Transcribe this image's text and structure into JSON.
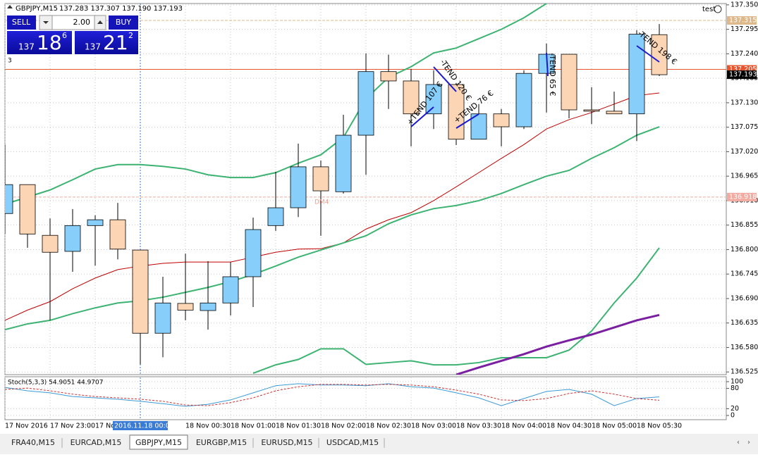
{
  "header": {
    "symbol": "GBPJPY,M15",
    "ohlc": "137.283 137.307 137.190 137.193"
  },
  "account": "test",
  "trade_panel": {
    "sell": "SELL",
    "buy": "BUY",
    "volume": "2.00",
    "sell_price": {
      "big": "137",
      "main": "18",
      "small": "6"
    },
    "buy_price": {
      "big": "137",
      "main": "21",
      "small": "2"
    },
    "indicator_count": "3"
  },
  "chart": {
    "ylim": [
      136.519,
      137.353
    ],
    "yticks": [
      {
        "value": 137.35,
        "label": "137.350"
      },
      {
        "value": 137.295,
        "label": "137.295"
      },
      {
        "value": 137.24,
        "label": "137.240"
      },
      {
        "value": 137.185,
        "label": "137.185"
      },
      {
        "value": 137.13,
        "label": "137.130"
      },
      {
        "value": 137.075,
        "label": "137.075"
      },
      {
        "value": 137.02,
        "label": "137.020"
      },
      {
        "value": 136.965,
        "label": "136.965"
      },
      {
        "value": 136.91,
        "label": "136.910"
      },
      {
        "value": 136.855,
        "label": "136.855"
      },
      {
        "value": 136.8,
        "label": "136.800"
      },
      {
        "value": 136.745,
        "label": "136.745"
      },
      {
        "value": 136.69,
        "label": "136.690"
      },
      {
        "value": 136.635,
        "label": "136.635"
      },
      {
        "value": 136.58,
        "label": "136.580"
      },
      {
        "value": 136.525,
        "label": "136.525"
      }
    ],
    "candles": [
      {
        "o": 136.881,
        "h": 137.036,
        "l": 136.835,
        "c": 136.946
      },
      {
        "o": 136.946,
        "h": 136.946,
        "l": 136.804,
        "c": 136.835
      },
      {
        "o": 136.832,
        "h": 136.87,
        "l": 136.641,
        "c": 136.794
      },
      {
        "o": 136.796,
        "h": 136.891,
        "l": 136.75,
        "c": 136.854
      },
      {
        "o": 136.854,
        "h": 136.877,
        "l": 136.764,
        "c": 136.867
      },
      {
        "o": 136.867,
        "h": 136.905,
        "l": 136.778,
        "c": 136.801
      },
      {
        "o": 136.799,
        "h": 136.799,
        "l": 136.542,
        "c": 136.612
      },
      {
        "o": 136.612,
        "h": 136.739,
        "l": 136.558,
        "c": 136.68
      },
      {
        "o": 136.679,
        "h": 136.791,
        "l": 136.641,
        "c": 136.664
      },
      {
        "o": 136.663,
        "h": 136.774,
        "l": 136.62,
        "c": 136.68
      },
      {
        "o": 136.68,
        "h": 136.772,
        "l": 136.652,
        "c": 136.739
      },
      {
        "o": 136.739,
        "h": 136.872,
        "l": 136.671,
        "c": 136.845
      },
      {
        "o": 136.854,
        "h": 136.975,
        "l": 136.842,
        "c": 136.894
      },
      {
        "o": 136.894,
        "h": 137.038,
        "l": 136.873,
        "c": 136.986
      },
      {
        "o": 136.986,
        "h": 137.0,
        "l": 136.831,
        "c": 136.932
      },
      {
        "o": 136.93,
        "h": 137.103,
        "l": 136.926,
        "c": 137.057
      },
      {
        "o": 137.057,
        "h": 137.241,
        "l": 136.968,
        "c": 137.2
      },
      {
        "o": 137.2,
        "h": 137.238,
        "l": 137.116,
        "c": 137.179
      },
      {
        "o": 137.179,
        "h": 137.206,
        "l": 137.032,
        "c": 137.105
      },
      {
        "o": 137.105,
        "h": 137.203,
        "l": 137.071,
        "c": 137.171
      },
      {
        "o": 137.171,
        "h": 137.174,
        "l": 137.035,
        "c": 137.048
      },
      {
        "o": 137.048,
        "h": 137.127,
        "l": 137.048,
        "c": 137.105
      },
      {
        "o": 137.105,
        "h": 137.116,
        "l": 137.032,
        "c": 137.076
      },
      {
        "o": 137.076,
        "h": 137.203,
        "l": 137.071,
        "c": 137.196
      },
      {
        "o": 137.196,
        "h": 137.263,
        "l": 137.108,
        "c": 137.239
      },
      {
        "o": 137.239,
        "h": 137.239,
        "l": 137.095,
        "c": 137.114
      },
      {
        "o": 137.114,
        "h": 137.165,
        "l": 137.082,
        "c": 137.111
      },
      {
        "o": 137.111,
        "h": 137.155,
        "l": 137.105,
        "c": 137.105
      },
      {
        "o": 137.105,
        "h": 137.293,
        "l": 137.044,
        "c": 137.284
      },
      {
        "o": 137.283,
        "h": 137.307,
        "l": 137.19,
        "c": 137.193
      }
    ],
    "up_color": "#87cefa",
    "down_color": "#fcd5b5",
    "lines": [
      {
        "color": "#3cb371",
        "width": 2,
        "values": [
          136.902,
          136.918,
          136.934,
          136.957,
          136.981,
          136.991,
          136.991,
          136.987,
          136.981,
          136.968,
          136.962,
          136.962,
          136.973,
          136.994,
          137.013,
          137.052,
          137.139,
          137.187,
          137.211,
          137.242,
          137.253,
          137.274,
          137.295,
          137.321,
          137.353,
          null,
          null,
          null,
          null,
          null
        ]
      },
      {
        "color": "#c00000",
        "width": 1,
        "values": [
          136.641,
          136.664,
          136.683,
          136.712,
          136.736,
          136.755,
          136.763,
          136.769,
          136.772,
          136.772,
          136.772,
          136.783,
          136.794,
          136.801,
          136.802,
          136.815,
          136.846,
          136.867,
          136.883,
          136.91,
          136.941,
          136.973,
          137.005,
          137.036,
          137.071,
          137.092,
          137.108,
          137.127,
          137.146,
          137.152
        ]
      },
      {
        "color": "#3cb371",
        "width": 2,
        "values": [
          136.62,
          136.633,
          136.641,
          136.656,
          136.669,
          136.68,
          136.685,
          136.693,
          136.704,
          136.715,
          136.728,
          136.744,
          136.763,
          136.783,
          136.799,
          136.815,
          136.831,
          136.858,
          136.878,
          136.892,
          136.899,
          136.91,
          136.926,
          136.946,
          136.965,
          136.978,
          137.005,
          137.029,
          137.057,
          137.076
        ]
      },
      {
        "color": "#3cb371",
        "width": 2,
        "values": [
          null,
          null,
          null,
          null,
          null,
          null,
          null,
          null,
          null,
          null,
          null,
          136.522,
          136.541,
          136.553,
          136.577,
          136.577,
          136.542,
          136.546,
          136.55,
          136.541,
          136.541,
          136.546,
          136.557,
          136.557,
          136.557,
          136.574,
          136.617,
          136.68,
          136.736,
          136.804
        ]
      },
      {
        "color": "#7b1fa2",
        "width": 3,
        "values": [
          null,
          null,
          null,
          null,
          null,
          null,
          null,
          null,
          null,
          null,
          null,
          null,
          null,
          null,
          null,
          null,
          null,
          null,
          null,
          null,
          136.519,
          136.535,
          136.55,
          136.565,
          136.582,
          136.596,
          136.609,
          136.625,
          136.641,
          136.653
        ]
      }
    ],
    "price_tags": [
      {
        "value": 137.315,
        "label": "137.315",
        "color": "#dcb88a",
        "line": "dash"
      },
      {
        "value": 137.205,
        "label": "137.205",
        "color": "#e8552c",
        "line": "solid"
      },
      {
        "value": 137.193,
        "label": "137.193",
        "color": "#000000",
        "line": "none"
      },
      {
        "value": 136.918,
        "label": "136.918",
        "color": "#f3aaa0",
        "line": "dash"
      }
    ],
    "object_label": "DM4",
    "trades": [
      "+TEND 107 €",
      "-TEND 120 €",
      "+TEND 76 €",
      "-TEND 65 €",
      "-TEND 198 €"
    ]
  },
  "time_axis": {
    "labels": [
      "17 Nov 2016",
      "17 Nov 23:00",
      "17 Nov",
      null,
      "18 Nov 00:30",
      "18 Nov 01:00",
      "18 Nov 01:30",
      "18 Nov 02:00",
      "18 Nov 02:30",
      "18 Nov 03:00",
      "18 Nov 03:30",
      "18 Nov 04:00",
      "18 Nov 04:30",
      "18 Nov 05:00",
      "18 Nov 05:30"
    ],
    "crosshair": "2016.11.18 00:00"
  },
  "stoch": {
    "label": "Stoch(5,3,3) 54.9051 44.9707",
    "ylim": [
      0,
      100
    ],
    "yticks": [
      0,
      20,
      80,
      100
    ],
    "main": {
      "color": "#3b9bd6",
      "values": [
        83,
        73,
        67,
        56,
        52,
        48,
        42,
        35,
        27,
        33,
        46,
        67,
        88,
        94,
        90,
        90,
        88,
        94,
        85,
        81,
        67,
        52,
        29,
        50,
        71,
        77,
        63,
        29,
        50,
        55
      ]
    },
    "signal": {
      "color": "#d03030",
      "values": [
        77,
        81,
        73,
        63,
        56,
        52,
        48,
        42,
        31,
        29,
        38,
        52,
        73,
        85,
        92,
        92,
        90,
        92,
        90,
        85,
        75,
        63,
        46,
        44,
        50,
        65,
        73,
        63,
        50,
        45
      ]
    }
  },
  "tabs": {
    "items": [
      "FRA40,M15",
      "EURCAD,M15",
      "GBPJPY,M15",
      "EURGBP,M15",
      "EURUSD,M15",
      "USDCAD,M15"
    ],
    "active": 2
  }
}
